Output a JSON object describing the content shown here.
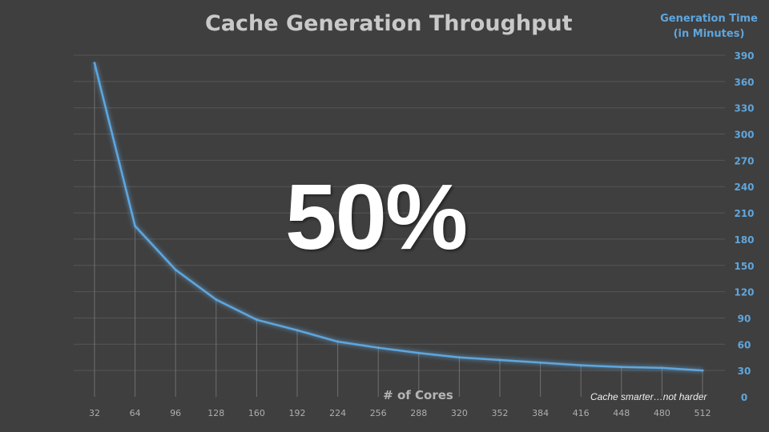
{
  "slide": {
    "big_stat": "50%",
    "tagline": "Cache smarter…not harder"
  },
  "colors": {
    "background": "#3f3f3f",
    "line": "#5fa6dd",
    "title": "#c9c9c9",
    "axis_text": "#aeaeae",
    "y_tick_text": "#5fa6dd"
  },
  "chart_data": {
    "type": "line",
    "title": "Cache Generation Throughput",
    "xlabel": "# of Cores",
    "ylabel": "Generation Time (in Minutes)",
    "ylabel_lines": [
      "Generation Time",
      "(in Minutes)"
    ],
    "x": [
      "32",
      "64",
      "96",
      "128",
      "160",
      "192",
      "224",
      "256",
      "288",
      "320",
      "352",
      "384",
      "416",
      "448",
      "480",
      "512"
    ],
    "series": [
      {
        "values": [
          381,
          195,
          145,
          111,
          88,
          76,
          63,
          56,
          50,
          45,
          42,
          39,
          36,
          34,
          33,
          30
        ]
      }
    ],
    "y_ticks": [
      0,
      30,
      60,
      90,
      120,
      150,
      180,
      210,
      240,
      270,
      300,
      330,
      360,
      390
    ],
    "ylim": [
      0,
      390
    ],
    "y_axis_position": "right",
    "grid": true,
    "drop_lines": true,
    "legend": "none"
  }
}
